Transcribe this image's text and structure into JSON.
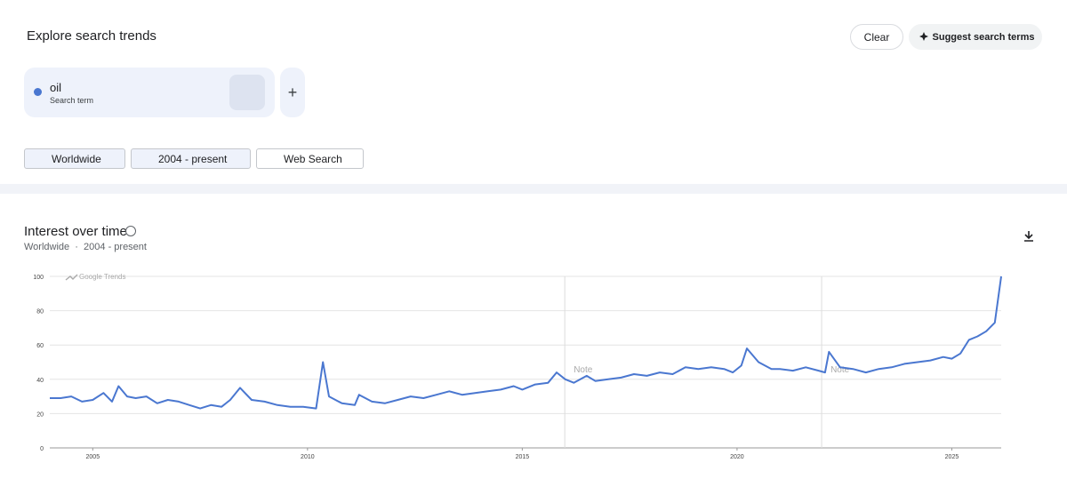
{
  "header": {
    "title": "Explore search trends",
    "clear": "Clear",
    "suggest": "Suggest search terms"
  },
  "search": {
    "term": "oil",
    "sublabel": "Search term"
  },
  "filters": [
    "Worldwide",
    "2004 - present",
    "Web Search"
  ],
  "panel": {
    "title": "Interest over time",
    "subtitle": "Worldwide  ·  2004 - present"
  },
  "chart_data": {
    "type": "line",
    "watermark": "Google Trends",
    "color": "#4a77d0",
    "grid": true,
    "x": [
      2004.0,
      2004.25,
      2004.5,
      2004.75,
      2005.0,
      2005.25,
      2005.45,
      2005.6,
      2005.8,
      2006.0,
      2006.25,
      2006.5,
      2006.75,
      2007.0,
      2007.25,
      2007.5,
      2007.75,
      2008.0,
      2008.2,
      2008.43,
      2008.7,
      2009.0,
      2009.3,
      2009.6,
      2009.9,
      2010.2,
      2010.36,
      2010.5,
      2010.8,
      2011.1,
      2011.2,
      2011.5,
      2011.8,
      2012.1,
      2012.4,
      2012.7,
      2013.0,
      2013.3,
      2013.6,
      2013.9,
      2014.2,
      2014.5,
      2014.8,
      2015.0,
      2015.3,
      2015.6,
      2015.8,
      2016.0,
      2016.2,
      2016.5,
      2016.7,
      2017.0,
      2017.3,
      2017.6,
      2017.9,
      2018.2,
      2018.5,
      2018.8,
      2019.1,
      2019.4,
      2019.7,
      2019.9,
      2020.1,
      2020.23,
      2020.5,
      2020.8,
      2021.0,
      2021.3,
      2021.6,
      2021.9,
      2022.05,
      2022.14,
      2022.4,
      2022.7,
      2023.0,
      2023.3,
      2023.6,
      2023.9,
      2024.2,
      2024.5,
      2024.8,
      2025.0,
      2025.2,
      2025.4,
      2025.6,
      2025.8,
      2026.0,
      2026.15
    ],
    "values": [
      29,
      29,
      30,
      27,
      28,
      32,
      27,
      36,
      30,
      29,
      30,
      26,
      28,
      27,
      25,
      23,
      25,
      24,
      28,
      35,
      28,
      27,
      25,
      24,
      24,
      23,
      50,
      30,
      26,
      25,
      31,
      27,
      26,
      28,
      30,
      29,
      31,
      33,
      31,
      32,
      33,
      34,
      36,
      34,
      37,
      38,
      44,
      40,
      38,
      42,
      39,
      40,
      41,
      43,
      42,
      44,
      43,
      47,
      46,
      47,
      46,
      44,
      48,
      58,
      50,
      46,
      46,
      45,
      47,
      45,
      44,
      56,
      47,
      46,
      44,
      46,
      47,
      49,
      50,
      51,
      53,
      52,
      55,
      63,
      65,
      68,
      73,
      100
    ],
    "xlim": [
      2004.0,
      2026.15
    ],
    "xticks": [
      2005,
      2010,
      2015,
      2020,
      2025
    ],
    "ylim": [
      0,
      100
    ],
    "yticks": [
      0,
      20,
      40,
      60,
      80,
      100
    ],
    "notes": [
      {
        "label": "Note",
        "x": 2015.99
      },
      {
        "label": "Note",
        "x": 2021.97
      }
    ]
  }
}
